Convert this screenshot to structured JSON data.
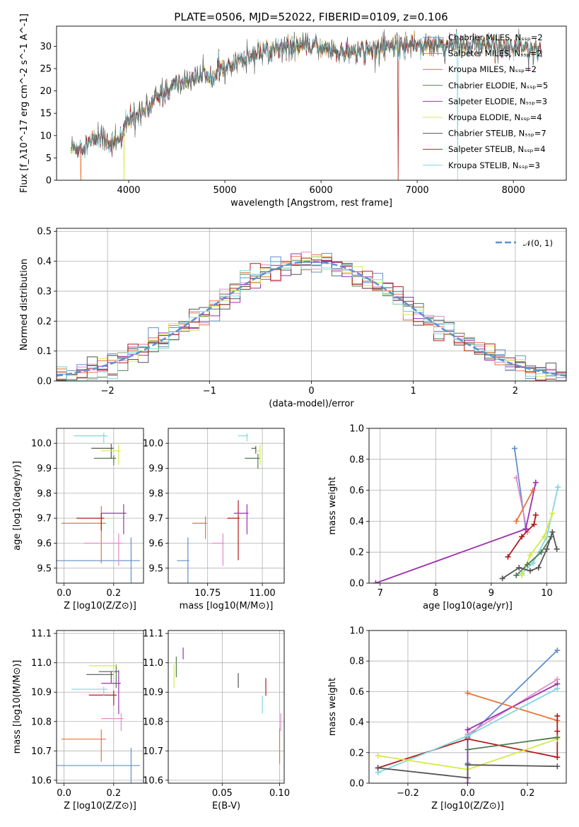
{
  "chart_data": [
    {
      "type": "line",
      "panel": "spectrum",
      "title": "PLATE=0506, MJD=52022, FIBERID=0109, z=0.106",
      "xlabel": "wavelength [Angstrom, rest frame]",
      "ylabel": "Flux [f_λ10^-17 erg cm^-2 s^-1 A^-1]",
      "xlim": [
        3250,
        8550
      ],
      "ylim": [
        0,
        34.5
      ],
      "xticks": [
        4000,
        5000,
        6000,
        7000,
        8000
      ],
      "yticks": [
        0,
        5,
        10,
        15,
        20,
        25,
        30
      ],
      "grid": false,
      "legend_position": "right",
      "continuum": {
        "x": [
          3400,
          3500,
          3600,
          3700,
          3800,
          3900,
          4000,
          4100,
          4200,
          4300,
          4400,
          4500,
          4700,
          4900,
          5100,
          5200,
          5300,
          5500,
          5700,
          5900,
          6100,
          6300,
          6500,
          6700,
          6900,
          7100,
          7300,
          7500,
          7700,
          7900,
          8100,
          8300
        ],
        "y": [
          7,
          7.5,
          8.5,
          10,
          8.5,
          9,
          13.5,
          15,
          17,
          18.5,
          20,
          21.5,
          23,
          24.5,
          25.5,
          27.5,
          28.5,
          29.5,
          30,
          30.3,
          29.2,
          28.6,
          29.3,
          30.2,
          30.4,
          30.6,
          30.4,
          30.1,
          30,
          29.6,
          29.5,
          29.3
        ]
      },
      "series": [
        {
          "name": "Chabrier MILES, N_SSP=2",
          "color": "#5f8fce"
        },
        {
          "name": "Salpeter MILES, N_SSP=2",
          "color": "#e8743b"
        },
        {
          "name": "Kroupa MILES, N_SSP=2",
          "color": "#b8860b"
        },
        {
          "name": "Chabrier ELODIE, N_SSP=5",
          "color": "#507a50"
        },
        {
          "name": "Salpeter ELODIE, N_SSP=3",
          "color": "#9b30b0"
        },
        {
          "name": "Kroupa ELODIE, N_SSP=4",
          "color": "#d6e84a"
        },
        {
          "name": "Chabrier STELIB, N_SSP=7",
          "color": "#555555"
        },
        {
          "name": "Salpeter STELIB, N_SSP=4",
          "color": "#b01c1c"
        },
        {
          "name": "Kroupa STELIB, N_SSP=3",
          "color": "#7fd8de"
        }
      ]
    },
    {
      "type": "histogram",
      "panel": "residuals",
      "xlabel": "(data-model)/error",
      "ylabel": "Normed distribution",
      "xlim": [
        -2.5,
        2.5
      ],
      "ylim": [
        0,
        0.51
      ],
      "xticks": [
        -2,
        -1,
        0,
        1,
        2
      ],
      "yticks": [
        0.0,
        0.1,
        0.2,
        0.3,
        0.4,
        0.5
      ],
      "grid": true,
      "legend_position": "top-right",
      "reference_curve": "N(0,1)",
      "bin_width": 0.1
    },
    {
      "type": "scatter",
      "panel": "age-vs-Z",
      "xlabel": "Z [log10(Z/Z⊙)]",
      "ylabel": "age [log10(age/yr)]",
      "xlim": [
        -0.03,
        0.32
      ],
      "ylim": [
        9.44,
        10.06
      ],
      "xticks": [
        0.0,
        0.2
      ],
      "yticks": [
        9.5,
        9.6,
        9.7,
        9.8,
        9.9,
        10.0
      ],
      "grid": true,
      "points": [
        {
          "color": "#5f8fce",
          "x": 0.27,
          "xerr": 0.3,
          "y": 9.53,
          "yerr": 0.31
        },
        {
          "color": "#e8743b",
          "x": 0.15,
          "xerr": 0.16,
          "y": 9.68,
          "yerr": 0.23
        },
        {
          "color": "#e38cc6",
          "x": 0.22,
          "xerr": 0.14,
          "y": 9.6,
          "yerr": 0.13
        },
        {
          "color": "#b01c1c",
          "x": 0.15,
          "xerr": 0.1,
          "y": 9.7,
          "yerr": 0.07
        },
        {
          "color": "#9b30b0",
          "x": 0.24,
          "xerr": 0.09,
          "y": 9.72,
          "yerr": 0.12
        },
        {
          "color": "#555555",
          "x": 0.19,
          "xerr": 0.08,
          "y": 9.98,
          "yerr": 0.06
        },
        {
          "color": "#507a50",
          "x": 0.2,
          "xerr": 0.08,
          "y": 9.94,
          "yerr": 0.04
        },
        {
          "color": "#7fd8de",
          "x": 0.16,
          "xerr": 0.12,
          "y": 10.03,
          "yerr": 0.04
        },
        {
          "color": "#d6e84a",
          "x": 0.22,
          "xerr": 0.07,
          "y": 9.97,
          "yerr": 0.08
        }
      ]
    },
    {
      "type": "scatter",
      "panel": "age-vs-mass",
      "xlabel": "mass [log10(M/M⊙)]",
      "ylabel": "",
      "xlim": [
        10.57,
        11.1
      ],
      "ylim": [
        9.44,
        10.06
      ],
      "xticks": [
        10.75,
        11.0
      ],
      "yticks": [
        9.5,
        9.6,
        9.7,
        9.8,
        9.9,
        10.0
      ],
      "grid": true,
      "points": [
        {
          "color": "#5f8fce",
          "x": 10.66,
          "xerr": 0.05,
          "y": 9.53,
          "yerr": 0.31
        },
        {
          "color": "#e8743b",
          "x": 10.74,
          "xerr": 0.06,
          "y": 9.68,
          "yerr": 0.09
        },
        {
          "color": "#e38cc6",
          "x": 10.82,
          "xerr": 0.05,
          "y": 9.6,
          "yerr": 0.13
        },
        {
          "color": "#b01c1c",
          "x": 10.89,
          "xerr": 0.05,
          "y": 9.7,
          "yerr": 0.24
        },
        {
          "color": "#9b30b0",
          "x": 10.93,
          "xerr": 0.06,
          "y": 9.72,
          "yerr": 0.12
        },
        {
          "color": "#555555",
          "x": 10.97,
          "xerr": 0.02,
          "y": 9.98,
          "yerr": 0.03
        },
        {
          "color": "#507a50",
          "x": 10.98,
          "xerr": 0.06,
          "y": 9.94,
          "yerr": 0.06
        },
        {
          "color": "#7fd8de",
          "x": 10.93,
          "xerr": 0.04,
          "y": 10.03,
          "yerr": 0.03
        },
        {
          "color": "#d6e84a",
          "x": 10.99,
          "xerr": 0.02,
          "y": 9.97,
          "yerr": 0.08
        }
      ]
    },
    {
      "type": "line",
      "panel": "weight-vs-age",
      "xlabel": "age [log10(age/yr)]",
      "ylabel": "mass weight",
      "xlim": [
        6.8,
        10.35
      ],
      "ylim": [
        0,
        1.0
      ],
      "xticks": [
        7,
        8,
        9,
        10
      ],
      "yticks": [
        0.0,
        0.2,
        0.4,
        0.6,
        0.8,
        1.0
      ],
      "grid": true,
      "series": [
        {
          "color": "#5f8fce",
          "x": [
            9.42,
            9.62
          ],
          "y": [
            0.87,
            0.35
          ]
        },
        {
          "color": "#e38cc6",
          "x": [
            9.45,
            9.65
          ],
          "y": [
            0.68,
            0.33
          ]
        },
        {
          "color": "#9b30b0",
          "x": [
            6.92,
            9.62,
            9.8
          ],
          "y": [
            0.0,
            0.35,
            0.65
          ]
        },
        {
          "color": "#e8743b",
          "x": [
            9.45,
            9.75
          ],
          "y": [
            0.4,
            0.6
          ]
        },
        {
          "color": "#b01c1c",
          "x": [
            9.3,
            9.55,
            9.77,
            9.8
          ],
          "y": [
            0.17,
            0.3,
            0.38,
            0.44
          ]
        },
        {
          "color": "#7fd8de",
          "x": [
            9.55,
            9.75,
            10.0,
            10.2
          ],
          "y": [
            0.06,
            0.13,
            0.3,
            0.62
          ]
        },
        {
          "color": "#d6e84a",
          "x": [
            9.55,
            9.7,
            9.95,
            10.1
          ],
          "y": [
            0.05,
            0.18,
            0.3,
            0.45
          ]
        },
        {
          "color": "#507a50",
          "x": [
            9.45,
            9.65,
            9.9,
            10.08
          ],
          "y": [
            0.05,
            0.12,
            0.2,
            0.3
          ]
        },
        {
          "color": "#555555",
          "x": [
            9.2,
            9.5,
            9.7,
            9.85,
            10.0,
            10.1,
            10.18
          ],
          "y": [
            0.03,
            0.1,
            0.08,
            0.1,
            0.22,
            0.33,
            0.22
          ]
        }
      ]
    },
    {
      "type": "scatter",
      "panel": "mass-vs-Z",
      "xlabel": "Z [log10(Z/Z⊙)]",
      "ylabel": "mass [log10(M/M⊙)]",
      "xlim": [
        -0.03,
        0.32
      ],
      "ylim": [
        10.59,
        11.11
      ],
      "xticks": [
        0.0,
        0.2
      ],
      "yticks": [
        10.6,
        10.7,
        10.8,
        10.9,
        11.0,
        11.1
      ],
      "grid": true,
      "points": [
        {
          "color": "#5f8fce",
          "x": 0.27,
          "xerr": 0.3,
          "y": 10.65,
          "yerr": 0.2
        },
        {
          "color": "#e8743b",
          "x": 0.15,
          "xerr": 0.16,
          "y": 10.74,
          "yerr": 0.11
        },
        {
          "color": "#e38cc6",
          "x": 0.23,
          "xerr": 0.08,
          "y": 10.81,
          "yerr": 0.06
        },
        {
          "color": "#b01c1c",
          "x": 0.2,
          "xerr": 0.1,
          "y": 10.89,
          "yerr": 0.05
        },
        {
          "color": "#9b30b0",
          "x": 0.22,
          "xerr": 0.07,
          "y": 10.93,
          "yerr": 0.15
        },
        {
          "color": "#555555",
          "x": 0.19,
          "xerr": 0.1,
          "y": 10.96,
          "yerr": 0.04
        },
        {
          "color": "#507a50",
          "x": 0.21,
          "xerr": 0.07,
          "y": 10.97,
          "yerr": 0.08
        },
        {
          "color": "#7fd8de",
          "x": 0.16,
          "xerr": 0.13,
          "y": 10.91,
          "yerr": 0.03
        },
        {
          "color": "#d6e84a",
          "x": 0.2,
          "xerr": 0.1,
          "y": 10.99,
          "yerr": 0.06
        }
      ]
    },
    {
      "type": "scatter",
      "panel": "mass-vs-EBV",
      "xlabel": "E(B-V)",
      "ylabel": "",
      "xlim": [
        0.003,
        0.104
      ],
      "ylim": [
        10.59,
        11.11
      ],
      "xticks": [
        0.05,
        0.1
      ],
      "yticks": [
        10.6,
        10.7,
        10.8,
        10.9,
        11.0,
        11.1
      ],
      "grid": true,
      "points": [
        {
          "color": "#d6e84a",
          "x": 0.008,
          "y": 10.97,
          "yerr": 0.08
        },
        {
          "color": "#507a50",
          "x": 0.01,
          "y": 11.0,
          "yerr": 0.07
        },
        {
          "color": "#9b30b0",
          "x": 0.016,
          "y": 11.04,
          "yerr": 0.04
        },
        {
          "color": "#555555",
          "x": 0.064,
          "y": 10.95,
          "yerr": 0.05
        },
        {
          "color": "#b01c1c",
          "x": 0.088,
          "y": 10.93,
          "yerr": 0.06
        },
        {
          "color": "#7fd8de",
          "x": 0.085,
          "y": 10.87,
          "yerr": 0.06
        },
        {
          "color": "#e8743b",
          "x": 0.1,
          "y": 10.74,
          "yerr": 0.12
        },
        {
          "color": "#e38cc6",
          "x": 0.101,
          "y": 10.81,
          "yerr": 0.06
        }
      ]
    },
    {
      "type": "line",
      "panel": "weight-vs-Z",
      "xlabel": "Z [log10(Z/Z⊙)]",
      "ylabel": "mass weight",
      "xlim": [
        -0.33,
        0.33
      ],
      "ylim": [
        0,
        1.0
      ],
      "xticks": [
        -0.2,
        0.0,
        0.2
      ],
      "yticks": [
        0.0,
        0.2,
        0.4,
        0.6,
        0.8,
        1.0
      ],
      "grid": true,
      "series": [
        {
          "color": "#5f8fce",
          "x": [
            0.0,
            0.0,
            0.3
          ],
          "y": [
            0.13,
            0.3,
            0.87
          ]
        },
        {
          "color": "#e38cc6",
          "x": [
            0.0,
            0.3
          ],
          "y": [
            0.32,
            0.68
          ]
        },
        {
          "color": "#9b30b0",
          "x": [
            0.0,
            0.0,
            0.3
          ],
          "y": [
            0.0,
            0.35,
            0.65
          ]
        },
        {
          "color": "#e8743b",
          "x": [
            0.0,
            0.3
          ],
          "y": [
            0.59,
            0.41
          ]
        },
        {
          "color": "#b01c1c",
          "x": [
            -0.3,
            0.0,
            0.3,
            0.3,
            0.3
          ],
          "y": [
            0.1,
            0.29,
            0.17,
            0.34,
            0.44
          ]
        },
        {
          "color": "#7fd8de",
          "x": [
            -0.3,
            0.0,
            0.3
          ],
          "y": [
            0.07,
            0.31,
            0.62
          ]
        },
        {
          "color": "#d6e84a",
          "x": [
            -0.3,
            0.0,
            0.3
          ],
          "y": [
            0.18,
            0.09,
            0.29
          ]
        },
        {
          "color": "#507a50",
          "x": [
            0.0,
            0.3
          ],
          "y": [
            0.22,
            0.3
          ]
        },
        {
          "color": "#555555",
          "x": [
            -0.3,
            0.0,
            0.0,
            0.3
          ],
          "y": [
            0.1,
            0.035,
            0.12,
            0.11
          ]
        }
      ]
    }
  ]
}
